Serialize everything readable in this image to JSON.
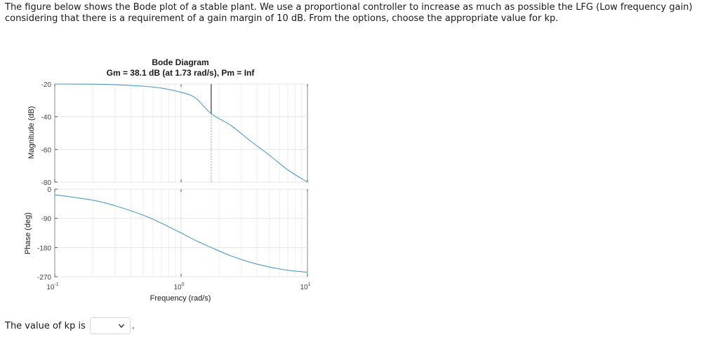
{
  "question": {
    "text": "The figure below shows the Bode plot of a stable plant. We use a proportional controller to increase as much as possible the LFG (Low frequency gain) considering that there is a requirement of a gain margin of 10 dB. From the options, choose the appropriate value for kp."
  },
  "answer": {
    "label": "The value of kp is",
    "selected_value": "",
    "trailing": ".",
    "dropdown_icon": "chevron-down-icon"
  },
  "chart_data": {
    "type": "line",
    "title": "Bode Diagram",
    "subtitle": "Gm = 38.1 dB (at 1.73 rad/s),  Pm = Inf",
    "xlabel": "Frequency (rad/s)",
    "x_scale": "log",
    "xlim": [
      0.1,
      10
    ],
    "x_ticks": [
      {
        "base": "10",
        "exp": "-1"
      },
      {
        "base": "10",
        "exp": "0"
      },
      {
        "base": "10",
        "exp": "1"
      }
    ],
    "grid": true,
    "line_color": "#4d9ec7",
    "marker_color": "#4a4a4a",
    "gain_margin_frequency": 1.73,
    "subplots": [
      {
        "name": "magnitude",
        "ylabel": "Magnitude (dB)",
        "ylim": [
          -80,
          -20
        ],
        "y_ticks": [
          "-20",
          "-40",
          "-60",
          "-80"
        ],
        "x": [
          0.1,
          0.2,
          0.3,
          0.5,
          0.7,
          1.0,
          1.3,
          1.73,
          2.5,
          3.5,
          5.0,
          7.0,
          10.0
        ],
        "y": [
          -20.0,
          -20.1,
          -20.4,
          -21.3,
          -22.5,
          -25.0,
          -28.5,
          -38.1,
          -45.5,
          -54.5,
          -63.5,
          -72.5,
          -80.0
        ],
        "gain_margin_dB": 38.1
      },
      {
        "name": "phase",
        "ylabel": "Phase (deg)",
        "ylim": [
          -270,
          0
        ],
        "y_ticks": [
          "0",
          "-90",
          "-180",
          "-270"
        ],
        "x": [
          0.1,
          0.2,
          0.3,
          0.5,
          0.7,
          1.0,
          1.3,
          1.73,
          2.5,
          3.5,
          5.0,
          7.0,
          10.0
        ],
        "y": [
          -17,
          -34,
          -51,
          -80,
          -105,
          -135,
          -158,
          -180,
          -206,
          -225,
          -240,
          -250,
          -256
        ]
      }
    ]
  }
}
